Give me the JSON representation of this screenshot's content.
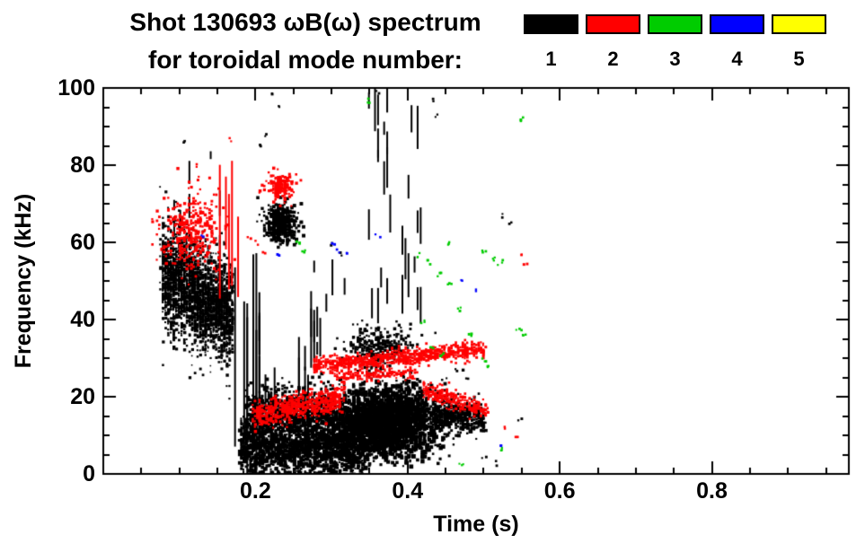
{
  "chart_data": {
    "type": "scatter",
    "title_line1": "Shot 130693 ωB(ω) spectrum",
    "title_line2": "for toroidal mode number:",
    "xlabel": "Time (s)",
    "ylabel": "Frequency (kHz)",
    "x_range": [
      0,
      0.98
    ],
    "y_range": [
      0,
      100
    ],
    "x_major_ticks": [
      0.2,
      0.4,
      0.6,
      0.8
    ],
    "x_minor_step": 0.05,
    "y_major_ticks": [
      0,
      20,
      40,
      60,
      80,
      100
    ],
    "y_minor_step": 5,
    "grid": false,
    "frame_color": "#000000",
    "legend": {
      "position": "top-right",
      "entries": [
        {
          "label": "1",
          "color": "#000000"
        },
        {
          "label": "2",
          "color": "#ff0000"
        },
        {
          "label": "3",
          "color": "#00cc00"
        },
        {
          "label": "4",
          "color": "#0000ff"
        },
        {
          "label": "5",
          "color": "#ffff00"
        }
      ]
    },
    "series": [
      {
        "name": "toroidal mode n=1",
        "color": "#000000",
        "clusters": [
          {
            "kind": "band",
            "t0": 0.075,
            "t1": 0.168,
            "f0": 52,
            "f1": 42,
            "sf": 6.5,
            "n": 2600,
            "size": [
              1.5,
              3.5
            ],
            "quant": 0.0035
          },
          {
            "kind": "strokes",
            "t0": 0.17,
            "t1": 0.205,
            "f0": 18,
            "f1": 38,
            "lmin": 25,
            "lmax": 52,
            "n": 8,
            "w": 2,
            "quant": 0.004
          },
          {
            "kind": "strokes",
            "t0": 0.2,
            "t1": 0.285,
            "f0": 10,
            "f1": 40,
            "lmin": 6,
            "lmax": 22,
            "n": 16,
            "w": 2,
            "quant": 0.004
          },
          {
            "kind": "strokes",
            "t0": 0.27,
            "t1": 0.315,
            "f0": 30,
            "f1": 58,
            "lmin": 3,
            "lmax": 10,
            "n": 9,
            "w": 2,
            "quant": 0.004
          },
          {
            "kind": "blob",
            "t": 0.232,
            "f": 65,
            "st": 0.011,
            "sf": 2.6,
            "n": 420,
            "size": [
              2,
              4
            ],
            "quant": 0.003
          },
          {
            "kind": "band",
            "t0": 0.178,
            "t1": 0.345,
            "f0": 7,
            "f1": 8,
            "sf": 3.8,
            "n": 1700,
            "size": [
              2,
              4.5
            ],
            "quant": 0.003
          },
          {
            "kind": "band",
            "t0": 0.185,
            "t1": 0.3,
            "f0": 16,
            "f1": 17,
            "sf": 3.2,
            "n": 700,
            "size": [
              2,
              4
            ],
            "quant": 0.003
          },
          {
            "kind": "blob",
            "t": 0.37,
            "f": 14,
            "st": 0.034,
            "sf": 4.2,
            "n": 2600,
            "size": [
              2,
              5
            ],
            "quant": 0.003
          },
          {
            "kind": "band",
            "t0": 0.43,
            "t1": 0.5,
            "f0": 16,
            "f1": 15,
            "sf": 1.8,
            "n": 420,
            "size": [
              2,
              3.5
            ],
            "quant": 0.003
          },
          {
            "kind": "blob",
            "t": 0.36,
            "f": 33,
            "st": 0.022,
            "sf": 3,
            "n": 330,
            "size": [
              2,
              3.5
            ],
            "quant": 0.003
          },
          {
            "kind": "strokes",
            "t0": 0.345,
            "t1": 0.378,
            "f0": 40,
            "f1": 97,
            "lmin": 3,
            "lmax": 14,
            "n": 16,
            "w": 2,
            "quant": 0.004
          },
          {
            "kind": "strokes",
            "t0": 0.385,
            "t1": 0.415,
            "f0": 42,
            "f1": 95,
            "lmin": 3,
            "lmax": 12,
            "n": 12,
            "w": 2,
            "quant": 0.004
          },
          {
            "kind": "strokes",
            "t0": 0.09,
            "t1": 0.155,
            "f0": 58,
            "f1": 84,
            "lmin": 2,
            "lmax": 7,
            "n": 10,
            "w": 2,
            "quant": 0.004
          },
          {
            "kind": "specks",
            "size": [
              2,
              3
            ],
            "rep": 2,
            "pts": [
              [
                0.105,
                86
              ],
              [
                0.205,
                85
              ],
              [
                0.215,
                88
              ],
              [
                0.222,
                99
              ],
              [
                0.228,
                95
              ],
              [
                0.36,
                99
              ],
              [
                0.52,
                67
              ],
              [
                0.532,
                65
              ],
              [
                0.46,
                27
              ],
              [
                0.475,
                25
              ],
              [
                0.5,
                5
              ],
              [
                0.515,
                3
              ],
              [
                0.545,
                14
              ],
              [
                0.3,
                60
              ],
              [
                0.31,
                57
              ],
              [
                0.43,
                97
              ],
              [
                0.435,
                93
              ]
            ]
          }
        ]
      },
      {
        "name": "toroidal mode n=2",
        "color": "#ff0000",
        "clusters": [
          {
            "kind": "blob",
            "t": 0.115,
            "f": 63,
            "st": 0.02,
            "sf": 5,
            "n": 340,
            "size": [
              2,
              3.5
            ],
            "quant": 0.003
          },
          {
            "kind": "strokes",
            "t0": 0.15,
            "t1": 0.185,
            "f0": 55,
            "f1": 70,
            "lmin": 15,
            "lmax": 35,
            "n": 5,
            "w": 2,
            "quant": 0.004
          },
          {
            "kind": "blob",
            "t": 0.232,
            "f": 74.5,
            "st": 0.009,
            "sf": 2,
            "n": 170,
            "size": [
              2,
              3.5
            ],
            "quant": 0.003
          },
          {
            "kind": "band",
            "t0": 0.275,
            "t1": 0.5,
            "f0": 28.5,
            "f1": 32.5,
            "sf": 1.1,
            "n": 850,
            "size": [
              2,
              3
            ],
            "quant": 0.003
          },
          {
            "kind": "band",
            "t0": 0.3,
            "t1": 0.41,
            "f0": 25.5,
            "f1": 26.5,
            "sf": 0.8,
            "n": 170,
            "size": [
              2,
              3
            ],
            "quant": 0.003
          },
          {
            "kind": "band",
            "t0": 0.195,
            "t1": 0.315,
            "f0": 15.5,
            "f1": 20,
            "sf": 1.8,
            "n": 520,
            "size": [
              2,
              3.5
            ],
            "quant": 0.003
          },
          {
            "kind": "band",
            "t0": 0.42,
            "t1": 0.505,
            "f0": 22,
            "f1": 16.5,
            "sf": 1.2,
            "n": 280,
            "size": [
              2,
              3
            ],
            "quant": 0.003
          },
          {
            "kind": "specks",
            "size": [
              2,
              3
            ],
            "rep": 2,
            "pts": [
              [
                0.545,
                57
              ],
              [
                0.553,
                55
              ],
              [
                0.527,
                12
              ],
              [
                0.54,
                10
              ],
              [
                0.165,
                87
              ],
              [
                0.19,
                62
              ],
              [
                0.2,
                60
              ],
              [
                0.21,
                58
              ],
              [
                0.12,
                80
              ],
              [
                0.125,
                77
              ]
            ]
          }
        ]
      },
      {
        "name": "toroidal mode n=3",
        "color": "#00cc00",
        "clusters": [
          {
            "kind": "specks",
            "size": [
              2,
              3
            ],
            "rep": 3,
            "pts": [
              [
                0.415,
                57
              ],
              [
                0.425,
                55
              ],
              [
                0.44,
                52
              ],
              [
                0.455,
                50
              ],
              [
                0.468,
                43
              ],
              [
                0.43,
                33
              ],
              [
                0.445,
                31
              ],
              [
                0.5,
                30
              ],
              [
                0.507,
                28
              ],
              [
                0.52,
                55
              ],
              [
                0.545,
                38
              ],
              [
                0.553,
                36
              ],
              [
                0.345,
                97
              ],
              [
                0.55,
                92
              ],
              [
                0.47,
                3
              ],
              [
                0.52,
                7
              ],
              [
                0.255,
                60
              ],
              [
                0.262,
                58
              ],
              [
                0.42,
                40
              ],
              [
                0.482,
                36
              ],
              [
                0.5,
                58
              ],
              [
                0.51,
                56
              ],
              [
                0.455,
                60
              ]
            ]
          }
        ]
      },
      {
        "name": "toroidal mode n=4",
        "color": "#0000ff",
        "clusters": [
          {
            "kind": "specks",
            "size": [
              2,
              3
            ],
            "rep": 2,
            "pts": [
              [
                0.3,
                60
              ],
              [
                0.306,
                58
              ],
              [
                0.316,
                57
              ],
              [
                0.47,
                50
              ],
              [
                0.487,
                48
              ],
              [
                0.23,
                57
              ],
              [
                0.36,
                62
              ],
              [
                0.52,
                8
              ],
              [
                0.13,
                62
              ]
            ]
          }
        ]
      },
      {
        "name": "toroidal mode n=5",
        "color": "#ffff00",
        "clusters": []
      }
    ]
  }
}
